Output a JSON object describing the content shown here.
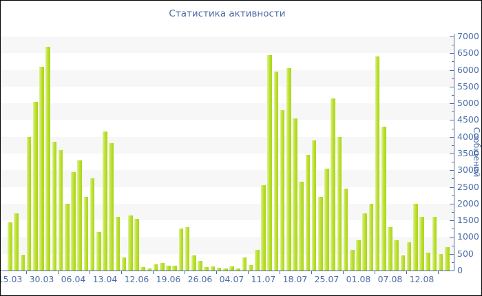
{
  "chart_data": {
    "type": "bar",
    "title": "Статистика активности",
    "ylabel": "Сообщений",
    "ylim": [
      0,
      7000
    ],
    "ytick_major_step": 500,
    "ytick_minor_step": 250,
    "grid": "alternating-horizontal-bands",
    "legend": "none",
    "x_tick_labels": [
      "15.03",
      "30.03",
      "06.04",
      "13.04",
      "12.06",
      "19.06",
      "26.06",
      "04.07",
      "11.07",
      "18.07",
      "25.07",
      "01.08",
      "07.08",
      "12.08"
    ],
    "x_label_every_n_bars": 5,
    "values": [
      1450,
      1700,
      480,
      4000,
      5050,
      6100,
      6700,
      3850,
      3600,
      2000,
      2950,
      3300,
      2200,
      2750,
      1150,
      4150,
      3800,
      1600,
      400,
      1650,
      1550,
      110,
      60,
      180,
      230,
      150,
      150,
      1250,
      1300,
      460,
      290,
      100,
      130,
      90,
      60,
      130,
      60,
      390,
      170,
      620,
      2550,
      6450,
      5950,
      4800,
      6050,
      4550,
      2650,
      3450,
      3900,
      2200,
      3050,
      5150,
      4000,
      2450,
      620,
      900,
      1700,
      2000,
      6400,
      4300,
      1300,
      900,
      450,
      850,
      2000,
      1600,
      540,
      1600,
      500,
      700
    ],
    "colors": {
      "bar": "#b6de28",
      "bar_highlight": "#e2f29b",
      "axis": "#4d6a9e",
      "tick_label": "#4c6da8",
      "title": "#4a69a2",
      "band_gray": "#f7f7f7",
      "background": "#ffffff"
    }
  }
}
